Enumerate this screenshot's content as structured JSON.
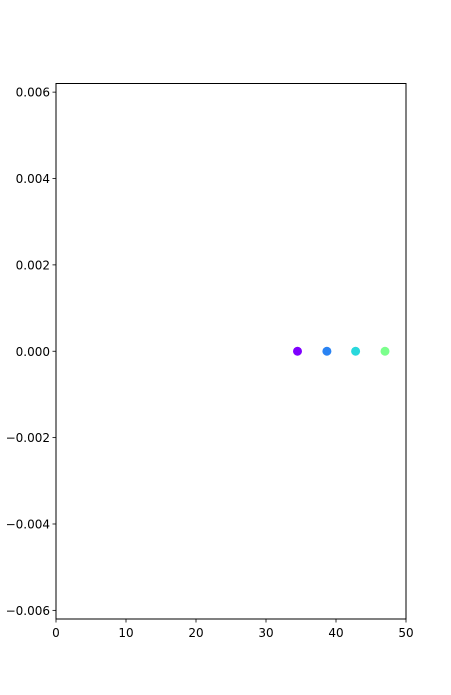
{
  "chart_data": {
    "type": "scatter",
    "title": "",
    "xlabel": "",
    "ylabel": "",
    "xlim": [
      0,
      50
    ],
    "ylim": [
      -0.0062,
      0.0062
    ],
    "x_ticks": [
      0,
      10,
      20,
      30,
      40,
      50
    ],
    "x_tick_labels": [
      "0",
      "10",
      "20",
      "30",
      "40",
      "50"
    ],
    "y_ticks": [
      0.006,
      0.004,
      0.002,
      0.0,
      -0.002,
      -0.004,
      -0.006
    ],
    "y_tick_labels": [
      "0.006",
      "0.004",
      "0.002",
      "0.000",
      "−0.002",
      "−0.004",
      "−0.006"
    ],
    "grid": false,
    "legend": "none",
    "points": [
      {
        "x": 34.5,
        "y": 0.0,
        "color": "#7f00ff"
      },
      {
        "x": 38.7,
        "y": 0.0,
        "color": "#2a83f3"
      },
      {
        "x": 42.8,
        "y": 0.0,
        "color": "#29d8dc"
      },
      {
        "x": 47.0,
        "y": 0.0,
        "color": "#7bff8c"
      }
    ]
  }
}
